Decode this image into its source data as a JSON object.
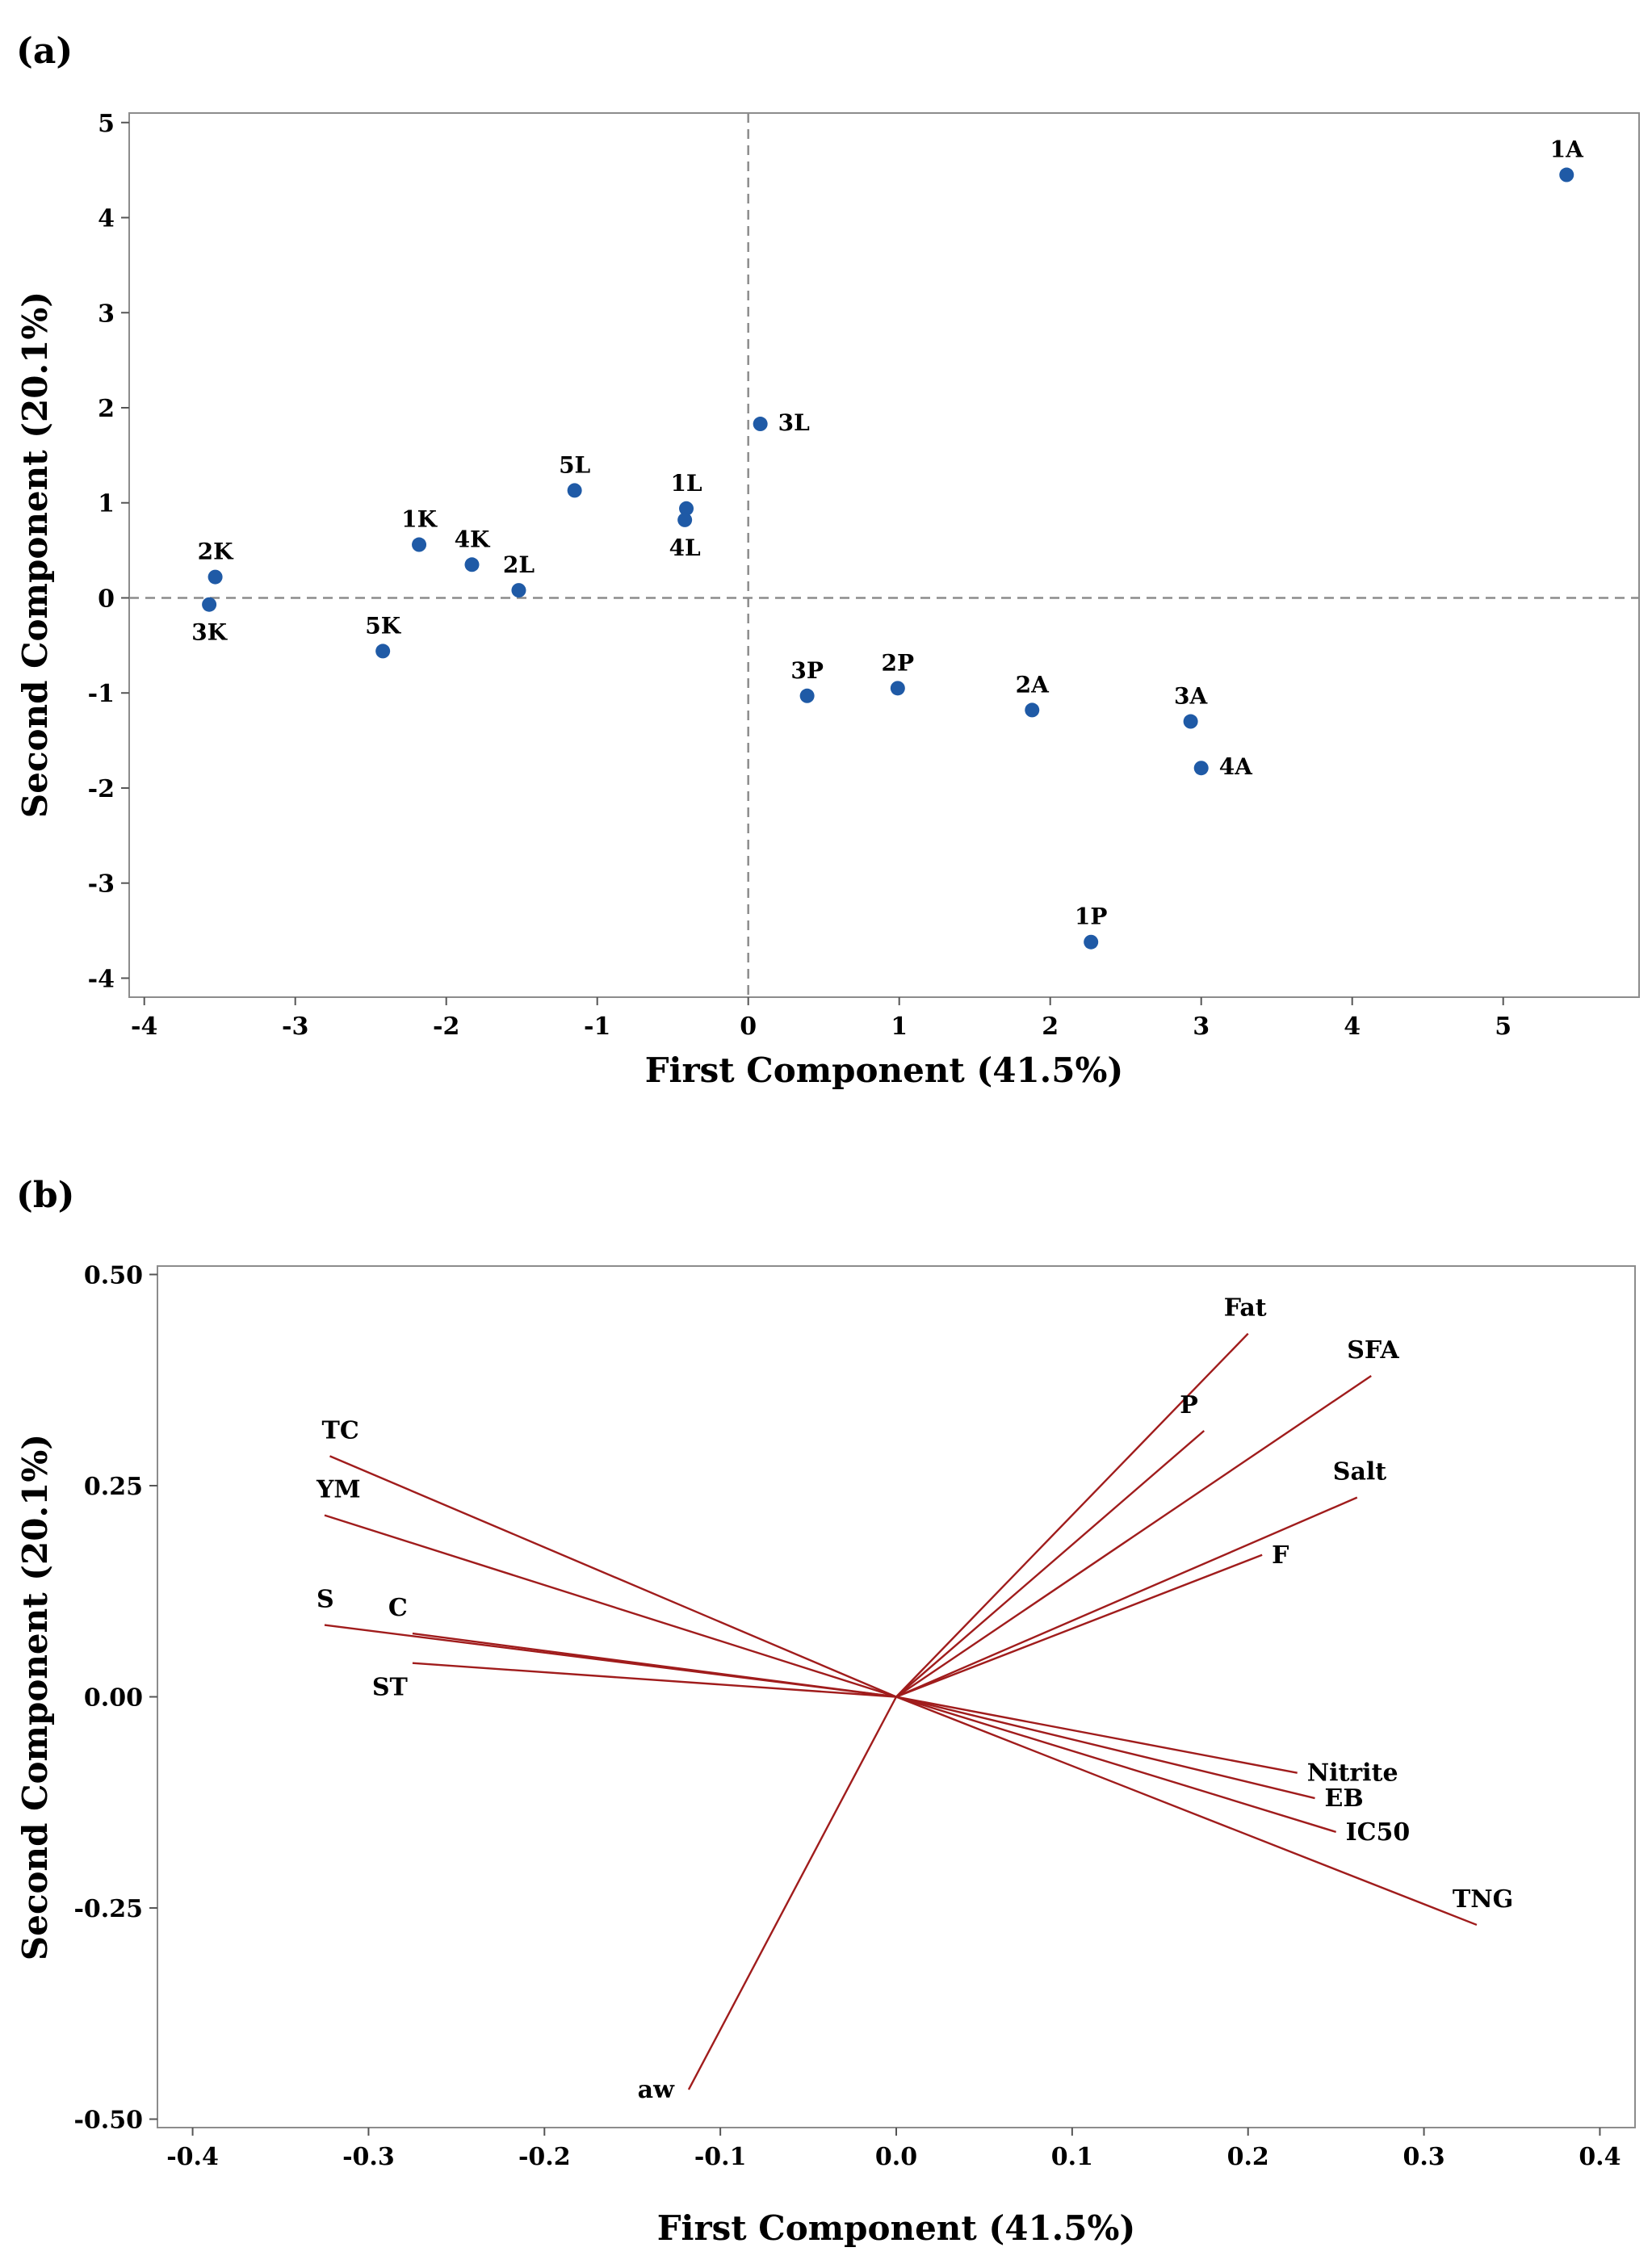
{
  "chart_data": [
    {
      "type": "scatter",
      "panel_label": "(a)",
      "xlabel": "First Component (41.5%)",
      "ylabel": "Second Component (20.1%)",
      "xlim": [
        -4.1,
        5.9
      ],
      "ylim": [
        -4.2,
        5.1
      ],
      "x_ticks": [
        -4,
        -3,
        -2,
        -1,
        0,
        1,
        2,
        3,
        4,
        5
      ],
      "y_ticks": [
        -4,
        -3,
        -2,
        -1,
        0,
        1,
        2,
        3,
        4,
        5
      ],
      "x_tick_labels": [
        "-4",
        "-3",
        "-2",
        "-1",
        "0",
        "1",
        "2",
        "3",
        "4",
        "5"
      ],
      "y_tick_labels": [
        "-4",
        "-3",
        "-2",
        "-1",
        "0",
        "1",
        "2",
        "3",
        "4",
        "5"
      ],
      "reference_lines": "dashed lines at x = 0 and y = 0",
      "points": [
        {
          "label": "1A",
          "x": 5.42,
          "y": 4.45,
          "label_pos": "above"
        },
        {
          "label": "2A",
          "x": 1.88,
          "y": -1.18,
          "label_pos": "above"
        },
        {
          "label": "3A",
          "x": 2.93,
          "y": -1.3,
          "label_pos": "above"
        },
        {
          "label": "4A",
          "x": 3.0,
          "y": -1.79,
          "label_pos": "right"
        },
        {
          "label": "1P",
          "x": 2.27,
          "y": -3.62,
          "label_pos": "above"
        },
        {
          "label": "2P",
          "x": 0.99,
          "y": -0.95,
          "label_pos": "above"
        },
        {
          "label": "3P",
          "x": 0.39,
          "y": -1.03,
          "label_pos": "above"
        },
        {
          "label": "1L",
          "x": -0.41,
          "y": 0.94,
          "label_pos": "above"
        },
        {
          "label": "2L",
          "x": -1.52,
          "y": 0.08,
          "label_pos": "above"
        },
        {
          "label": "3L",
          "x": 0.08,
          "y": 1.83,
          "label_pos": "right"
        },
        {
          "label": "4L",
          "x": -0.42,
          "y": 0.82,
          "label_pos": "below"
        },
        {
          "label": "5L",
          "x": -1.15,
          "y": 1.13,
          "label_pos": "above"
        },
        {
          "label": "1K",
          "x": -2.18,
          "y": 0.56,
          "label_pos": "above"
        },
        {
          "label": "2K",
          "x": -3.53,
          "y": 0.22,
          "label_pos": "above"
        },
        {
          "label": "3K",
          "x": -3.57,
          "y": -0.07,
          "label_pos": "below"
        },
        {
          "label": "4K",
          "x": -1.83,
          "y": 0.35,
          "label_pos": "above"
        },
        {
          "label": "5K",
          "x": -2.42,
          "y": -0.56,
          "label_pos": "above"
        }
      ]
    },
    {
      "type": "loading_plot",
      "panel_label": "(b)",
      "xlabel": "First Component (41.5%)",
      "ylabel": "Second Component (20.1%)",
      "xlim": [
        -0.42,
        0.42
      ],
      "ylim": [
        -0.51,
        0.51
      ],
      "x_ticks": [
        -0.4,
        -0.3,
        -0.2,
        -0.1,
        0.0,
        0.1,
        0.2,
        0.3,
        0.4
      ],
      "y_ticks": [
        -0.5,
        -0.25,
        0.0,
        0.25,
        0.5
      ],
      "x_tick_labels": [
        "-0.4",
        "-0.3",
        "-0.2",
        "-0.1",
        "0.0",
        "0.1",
        "0.2",
        "0.3",
        "0.4"
      ],
      "y_tick_labels": [
        "-0.50",
        "-0.25",
        "0.00",
        "0.25",
        "0.50"
      ],
      "vectors": [
        {
          "label": "Fat",
          "x": 0.2,
          "y": 0.43,
          "label_pos": "top-right"
        },
        {
          "label": "SFA",
          "x": 0.27,
          "y": 0.38,
          "label_pos": "top-right"
        },
        {
          "label": "P",
          "x": 0.175,
          "y": 0.315,
          "label_pos": "top-right"
        },
        {
          "label": "Salt",
          "x": 0.262,
          "y": 0.236,
          "label_pos": "top-right"
        },
        {
          "label": "F",
          "x": 0.208,
          "y": 0.168,
          "label_pos": "right"
        },
        {
          "label": "Nitrite",
          "x": 0.228,
          "y": -0.09,
          "label_pos": "right"
        },
        {
          "label": "EB",
          "x": 0.238,
          "y": -0.12,
          "label_pos": "right"
        },
        {
          "label": "IC50",
          "x": 0.25,
          "y": -0.16,
          "label_pos": "right"
        },
        {
          "label": "TNG",
          "x": 0.33,
          "y": -0.27,
          "label_pos": "top-right"
        },
        {
          "label": "TC",
          "x": -0.322,
          "y": 0.285,
          "label_pos": "top-left"
        },
        {
          "label": "YM",
          "x": -0.325,
          "y": 0.215,
          "label_pos": "top-left"
        },
        {
          "label": "S",
          "x": -0.325,
          "y": 0.085,
          "label_pos": "top-left"
        },
        {
          "label": "C",
          "x": -0.275,
          "y": 0.075,
          "label_pos": "top-right"
        },
        {
          "label": "ST",
          "x": -0.275,
          "y": 0.04,
          "label_pos": "bottom-left"
        },
        {
          "label": "aw",
          "x": -0.118,
          "y": -0.465,
          "label_pos": "left"
        }
      ]
    }
  ]
}
